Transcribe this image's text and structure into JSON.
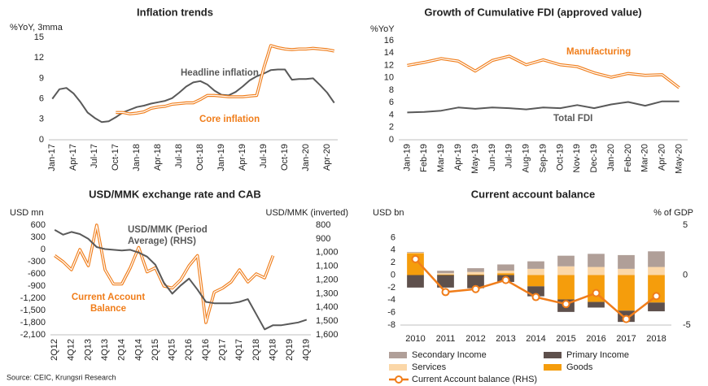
{
  "chart_data": [
    {
      "type": "line",
      "title": "Inflation trends",
      "y_label": "%YoY, 3mma",
      "categories": [
        "Jan-17",
        null,
        null,
        "Apr-17",
        null,
        null,
        "Jul-17",
        null,
        null,
        "Oct-17",
        null,
        null,
        "Jan-18",
        null,
        null,
        "Apr-18",
        null,
        null,
        "Jul-18",
        null,
        null,
        "Oct-18",
        null,
        null,
        "Jan-19",
        null,
        null,
        "Apr-19",
        null,
        null,
        "Jul-19",
        null,
        null,
        "Oct-19",
        null,
        null,
        "Jan-20",
        null,
        null,
        "Apr-20",
        null
      ],
      "series": [
        {
          "name": "Headline inflation",
          "color": "#595959",
          "style": "solid",
          "values": [
            6.0,
            7.4,
            7.6,
            6.8,
            5.5,
            4.0,
            3.2,
            2.6,
            2.7,
            3.3,
            4.0,
            4.4,
            4.8,
            5.0,
            5.3,
            5.5,
            5.7,
            6.1,
            6.9,
            7.8,
            8.4,
            8.6,
            8.1,
            7.2,
            6.6,
            6.5,
            7.0,
            7.8,
            8.7,
            9.3,
            9.7,
            10.2,
            10.3,
            10.3,
            8.8,
            8.9,
            8.9,
            9.0,
            8.0,
            6.9,
            5.4
          ]
        },
        {
          "name": "Core inflation",
          "color": "#f07d1a",
          "style": "double",
          "values": [
            null,
            null,
            null,
            null,
            null,
            null,
            null,
            null,
            null,
            4.0,
            4.0,
            3.8,
            3.9,
            4.1,
            4.6,
            4.8,
            4.9,
            5.2,
            5.3,
            5.4,
            5.4,
            5.9,
            6.5,
            6.5,
            6.4,
            6.3,
            6.3,
            6.3,
            6.4,
            6.5,
            10.5,
            13.8,
            13.5,
            13.3,
            13.2,
            13.3,
            13.3,
            13.4,
            13.3,
            13.2,
            13.0
          ]
        }
      ],
      "annotations": [
        {
          "lines": [
            "Headline inflation"
          ],
          "color": "#595959"
        },
        {
          "lines": [
            "Core inflation"
          ],
          "color": "#f07d1a"
        }
      ],
      "ylim": [
        0,
        15
      ],
      "yticks": [
        0,
        3,
        6,
        9,
        12,
        15
      ],
      "rotate_x_labels": true
    },
    {
      "type": "line",
      "title": "Growth of Cumulative FDI (approved value)",
      "y_label": "%YoY",
      "categories": [
        "Jan-19",
        "Feb-19",
        "Mar-19",
        "Apr-19",
        "May-19",
        "Jun-19",
        "Jul-19",
        "Aug-19",
        "Sep-19",
        "Oct-19",
        "Nov-19",
        "Dec-19",
        "Jan-20",
        "Feb-20",
        "Mar-20",
        "Apr-20",
        "May-20"
      ],
      "series": [
        {
          "name": "Manufacturing",
          "color": "#f07d1a",
          "style": "double",
          "values": [
            12.0,
            12.5,
            13.1,
            12.7,
            11.1,
            12.8,
            13.5,
            12.1,
            12.9,
            12.1,
            11.8,
            10.8,
            10.1,
            10.7,
            10.4,
            10.5,
            8.4
          ]
        },
        {
          "name": "Total FDI",
          "color": "#595959",
          "style": "solid",
          "values": [
            4.4,
            4.5,
            4.7,
            5.2,
            5.0,
            5.2,
            5.1,
            4.9,
            5.2,
            5.1,
            5.6,
            5.1,
            5.7,
            6.1,
            5.5,
            6.2,
            6.2
          ]
        }
      ],
      "annotations": [
        {
          "lines": [
            "Manufacturing"
          ],
          "color": "#f07d1a"
        },
        {
          "lines": [
            "Total FDI"
          ],
          "color": "#595959"
        }
      ],
      "ylim": [
        0,
        16
      ],
      "yticks": [
        0,
        2,
        4,
        6,
        8,
        10,
        12,
        14,
        16
      ],
      "rotate_x_labels": true
    },
    {
      "type": "line",
      "title": "USD/MMK exchange rate and CAB",
      "y_label": "USD mn",
      "y2_label": "USD/MMK (inverted)",
      "categories": [
        "2Q12",
        null,
        "4Q12",
        null,
        "2Q13",
        null,
        "4Q13",
        null,
        "2Q14",
        null,
        "4Q14",
        null,
        "2Q15",
        null,
        "4Q15",
        null,
        "2Q16",
        null,
        "4Q16",
        null,
        "2Q17",
        null,
        "4Q17",
        null,
        "2Q18",
        null,
        "4Q18",
        null,
        "2Q19",
        null,
        "4Q19"
      ],
      "series": [
        {
          "name": "Current Account Balance",
          "color": "#f07d1a",
          "style": "double",
          "values": [
            -150,
            -300,
            -500,
            0,
            -400,
            600,
            -500,
            -850,
            -850,
            -450,
            50,
            -550,
            -450,
            -900,
            -950,
            -750,
            -400,
            -150,
            -1800,
            -1050,
            -950,
            -800,
            -500,
            -800,
            -600,
            -700,
            -150,
            null,
            null,
            null,
            null
          ]
        },
        {
          "name": "USD/MMK (Period Average) (RHS)",
          "color": "#595959",
          "style": "solid",
          "axis": "y2",
          "values": [
            835,
            870,
            850,
            865,
            900,
            960,
            975,
            980,
            985,
            980,
            1000,
            1030,
            1090,
            1220,
            1300,
            1240,
            1190,
            1270,
            1360,
            1370,
            1370,
            1370,
            1360,
            1340,
            1450,
            1560,
            1530,
            1530,
            1520,
            1510,
            1490
          ]
        }
      ],
      "annotations": [
        {
          "lines": [
            "USD/MMK (Period",
            "Average) (RHS)"
          ],
          "color": "#595959"
        },
        {
          "lines": [
            "Current Account",
            "Balance"
          ],
          "color": "#f07d1a"
        }
      ],
      "ylim": [
        -2100,
        600
      ],
      "yticks": [
        {
          "value": -2100,
          "label": "-2,100"
        },
        {
          "value": -1800,
          "label": "-1,800"
        },
        {
          "value": -1500,
          "label": "-1,500"
        },
        {
          "value": -1200,
          "label": "-1,200"
        },
        -900,
        -600,
        -300,
        0,
        300,
        600
      ],
      "y2lim": [
        800,
        1600
      ],
      "y2_inverted": true,
      "y2ticks": [
        800,
        900,
        {
          "value": 1000,
          "label": "1,000"
        },
        {
          "value": 1100,
          "label": "1,100"
        },
        {
          "value": 1200,
          "label": "1,200"
        },
        {
          "value": 1300,
          "label": "1,300"
        },
        {
          "value": 1400,
          "label": "1,400"
        },
        {
          "value": 1500,
          "label": "1,500"
        },
        {
          "value": 1600,
          "label": "1,600"
        }
      ],
      "rotate_x_labels": true
    },
    {
      "type": "bar",
      "title": "Current account balance",
      "y_label": "USD bn",
      "y2_label": "% of GDP",
      "stacked": true,
      "categories": [
        "2010",
        "2011",
        "2012",
        "2013",
        "2014",
        "2015",
        "2016",
        "2017",
        "2018"
      ],
      "series": [
        {
          "name": "Secondary Income",
          "color": "#b09f98",
          "values": [
            0.1,
            0.4,
            0.6,
            1.0,
            1.2,
            1.7,
            2.1,
            2.2,
            2.5
          ]
        },
        {
          "name": "Primary Income",
          "color": "#5e504c",
          "values": [
            -2.0,
            -2.0,
            -2.1,
            -1.1,
            -1.6,
            -2.0,
            -0.9,
            -1.8,
            -1.4
          ]
        },
        {
          "name": "Services",
          "color": "#fbd7a8",
          "values": [
            0.1,
            0.2,
            0.4,
            0.4,
            1.0,
            1.4,
            1.3,
            1.0,
            1.3
          ]
        },
        {
          "name": "Goods",
          "color": "#f59d0c",
          "values": [
            3.5,
            0.1,
            0.1,
            0.3,
            -1.8,
            -3.9,
            -4.3,
            -5.7,
            -4.4
          ]
        },
        {
          "name": "Current Account balance (RHS)",
          "color": "#f07d1a",
          "type": "line",
          "axis": "y2",
          "values": [
            1.6,
            -1.7,
            -1.4,
            -0.5,
            -2.2,
            -2.9,
            -1.8,
            -4.4,
            -2.1
          ]
        }
      ],
      "ylim": [
        -8,
        8
      ],
      "yticks": [
        -8,
        -6,
        -4,
        -2,
        0,
        2,
        4,
        6
      ],
      "y2lim": [
        -5,
        5
      ],
      "y2ticks": [
        -5,
        0,
        5
      ],
      "rotate_x_labels": false
    }
  ],
  "source": "Source: CEIC, Krungsri Research"
}
